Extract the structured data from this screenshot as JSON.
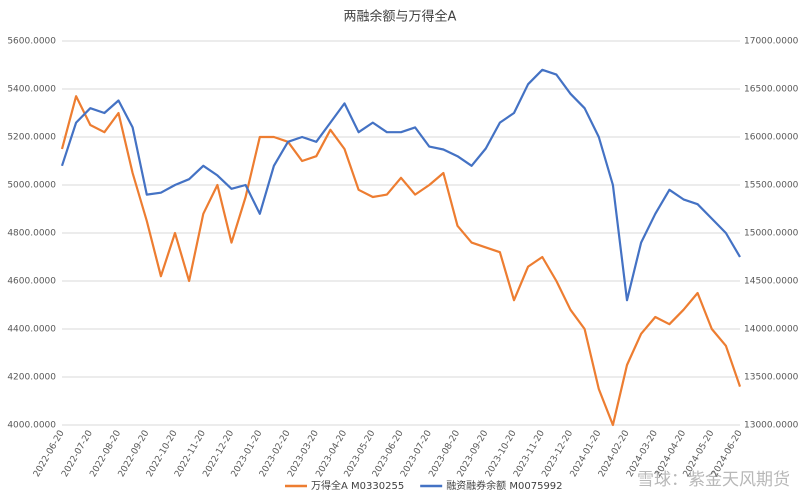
{
  "chart_data": {
    "type": "line",
    "title": "两融余额与万得全A",
    "watermark": "雪球：紫金天风期货",
    "categories": [
      "2022-06-20",
      null,
      "2022-07-20",
      null,
      "2022-08-20",
      null,
      "2022-09-20",
      null,
      "2022-10-20",
      null,
      "2022-11-20",
      null,
      "2022-12-20",
      null,
      "2023-01-20",
      null,
      "2023-02-20",
      null,
      "2023-03-20",
      null,
      "2023-04-20",
      null,
      "2023-05-20",
      null,
      "2023-06-20",
      null,
      "2023-07-20",
      null,
      "2023-08-20",
      null,
      "2023-09-20",
      null,
      "2023-10-20",
      null,
      "2023-11-20",
      null,
      "2023-12-20",
      null,
      "2024-01-20",
      null,
      "2024-02-20",
      null,
      "2024-03-20",
      null,
      "2024-04-20",
      null,
      "2024-05-20",
      null,
      "2024-06-20"
    ],
    "series": [
      {
        "name": "万得全A M0330255",
        "color": "#ed7d31",
        "values": [
          5150,
          5370,
          5250,
          5220,
          5300,
          5050,
          4850,
          4620,
          4800,
          4600,
          4880,
          5000,
          4760,
          4950,
          5200,
          5200,
          5180,
          5100,
          5120,
          5230,
          5150,
          4980,
          4950,
          4960,
          5030,
          4960,
          5000,
          5050,
          4830,
          4760,
          4740,
          4720,
          4520,
          4660,
          4700,
          4600,
          4480,
          4400,
          4150,
          4000,
          4250,
          4380,
          4450,
          4420,
          4480,
          4550,
          4400,
          4330,
          4160
        ]
      },
      {
        "name": "融资融券余额 M0075992",
        "color": "#4472c4",
        "axis": "y2",
        "values": [
          15700,
          16150,
          16300,
          16250,
          16380,
          16100,
          15400,
          15420,
          15500,
          15560,
          15700,
          15600,
          15460,
          15500,
          15200,
          15700,
          15950,
          16000,
          15950,
          16150,
          16350,
          16050,
          16150,
          16050,
          16050,
          16100,
          15900,
          15870,
          15800,
          15700,
          15880,
          16150,
          16250,
          16550,
          16700,
          16650,
          16450,
          16300,
          16000,
          15500,
          14300,
          14900,
          15200,
          15450,
          15350,
          15300,
          15150,
          15000,
          14750
        ]
      }
    ],
    "ylim": [
      4000,
      5600
    ],
    "yticks": [
      {
        "value": 4000,
        "label": "4000.0000"
      },
      {
        "value": 4200,
        "label": "4200.0000"
      },
      {
        "value": 4400,
        "label": "4400.0000"
      },
      {
        "value": 4600,
        "label": "4600.0000"
      },
      {
        "value": 4800,
        "label": "4800.0000"
      },
      {
        "value": 5000,
        "label": "5000.0000"
      },
      {
        "value": 5200,
        "label": "5200.0000"
      },
      {
        "value": 5400,
        "label": "5400.0000"
      },
      {
        "value": 5600,
        "label": "5600.0000"
      }
    ],
    "y2lim": [
      13000,
      17000
    ],
    "y2ticks": [
      {
        "value": 13000,
        "label": "13000.0000"
      },
      {
        "value": 13500,
        "label": "13500.0000"
      },
      {
        "value": 14000,
        "label": "14000.0000"
      },
      {
        "value": 14500,
        "label": "14500.0000"
      },
      {
        "value": 15000,
        "label": "15000.0000"
      },
      {
        "value": 15500,
        "label": "15500.0000"
      },
      {
        "value": 16000,
        "label": "16000.0000"
      },
      {
        "value": 16500,
        "label": "16500.0000"
      },
      {
        "value": 17000,
        "label": "17000.0000"
      }
    ],
    "grid": true,
    "legend": "bottom"
  }
}
